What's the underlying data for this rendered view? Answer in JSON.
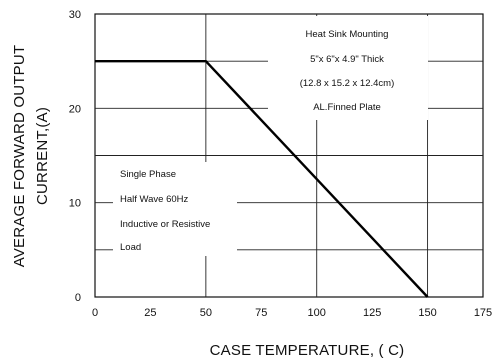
{
  "chart_data": {
    "type": "line",
    "xlabel": "CASE  TEMPERATURE, (      C)",
    "ylabel_line1": "AVERAGE FORWARD OUTPUT",
    "ylabel_line2": "CURRENT,(A)",
    "x_ticks": [
      "0",
      "25",
      "50",
      "75",
      "100",
      "125",
      "150",
      "175"
    ],
    "y_ticks": [
      "0",
      "10",
      "20",
      "30"
    ],
    "xlim": [
      0,
      175
    ],
    "ylim": [
      0,
      30
    ],
    "grid": true,
    "series": [
      {
        "x": [
          0,
          50,
          150
        ],
        "y": [
          25,
          25,
          0
        ]
      }
    ],
    "annotations": {
      "heat_sink": [
        "Heat Sink Mounting",
        "5\"x 6\"x 4.9\" Thick",
        "(12.8 x 15.2 x 12.4cm)",
        "AL.Finned Plate"
      ],
      "conditions": [
        "Single Phase",
        "Half Wave 60Hz",
        "Inductive or Resistive",
        "Load"
      ]
    }
  }
}
